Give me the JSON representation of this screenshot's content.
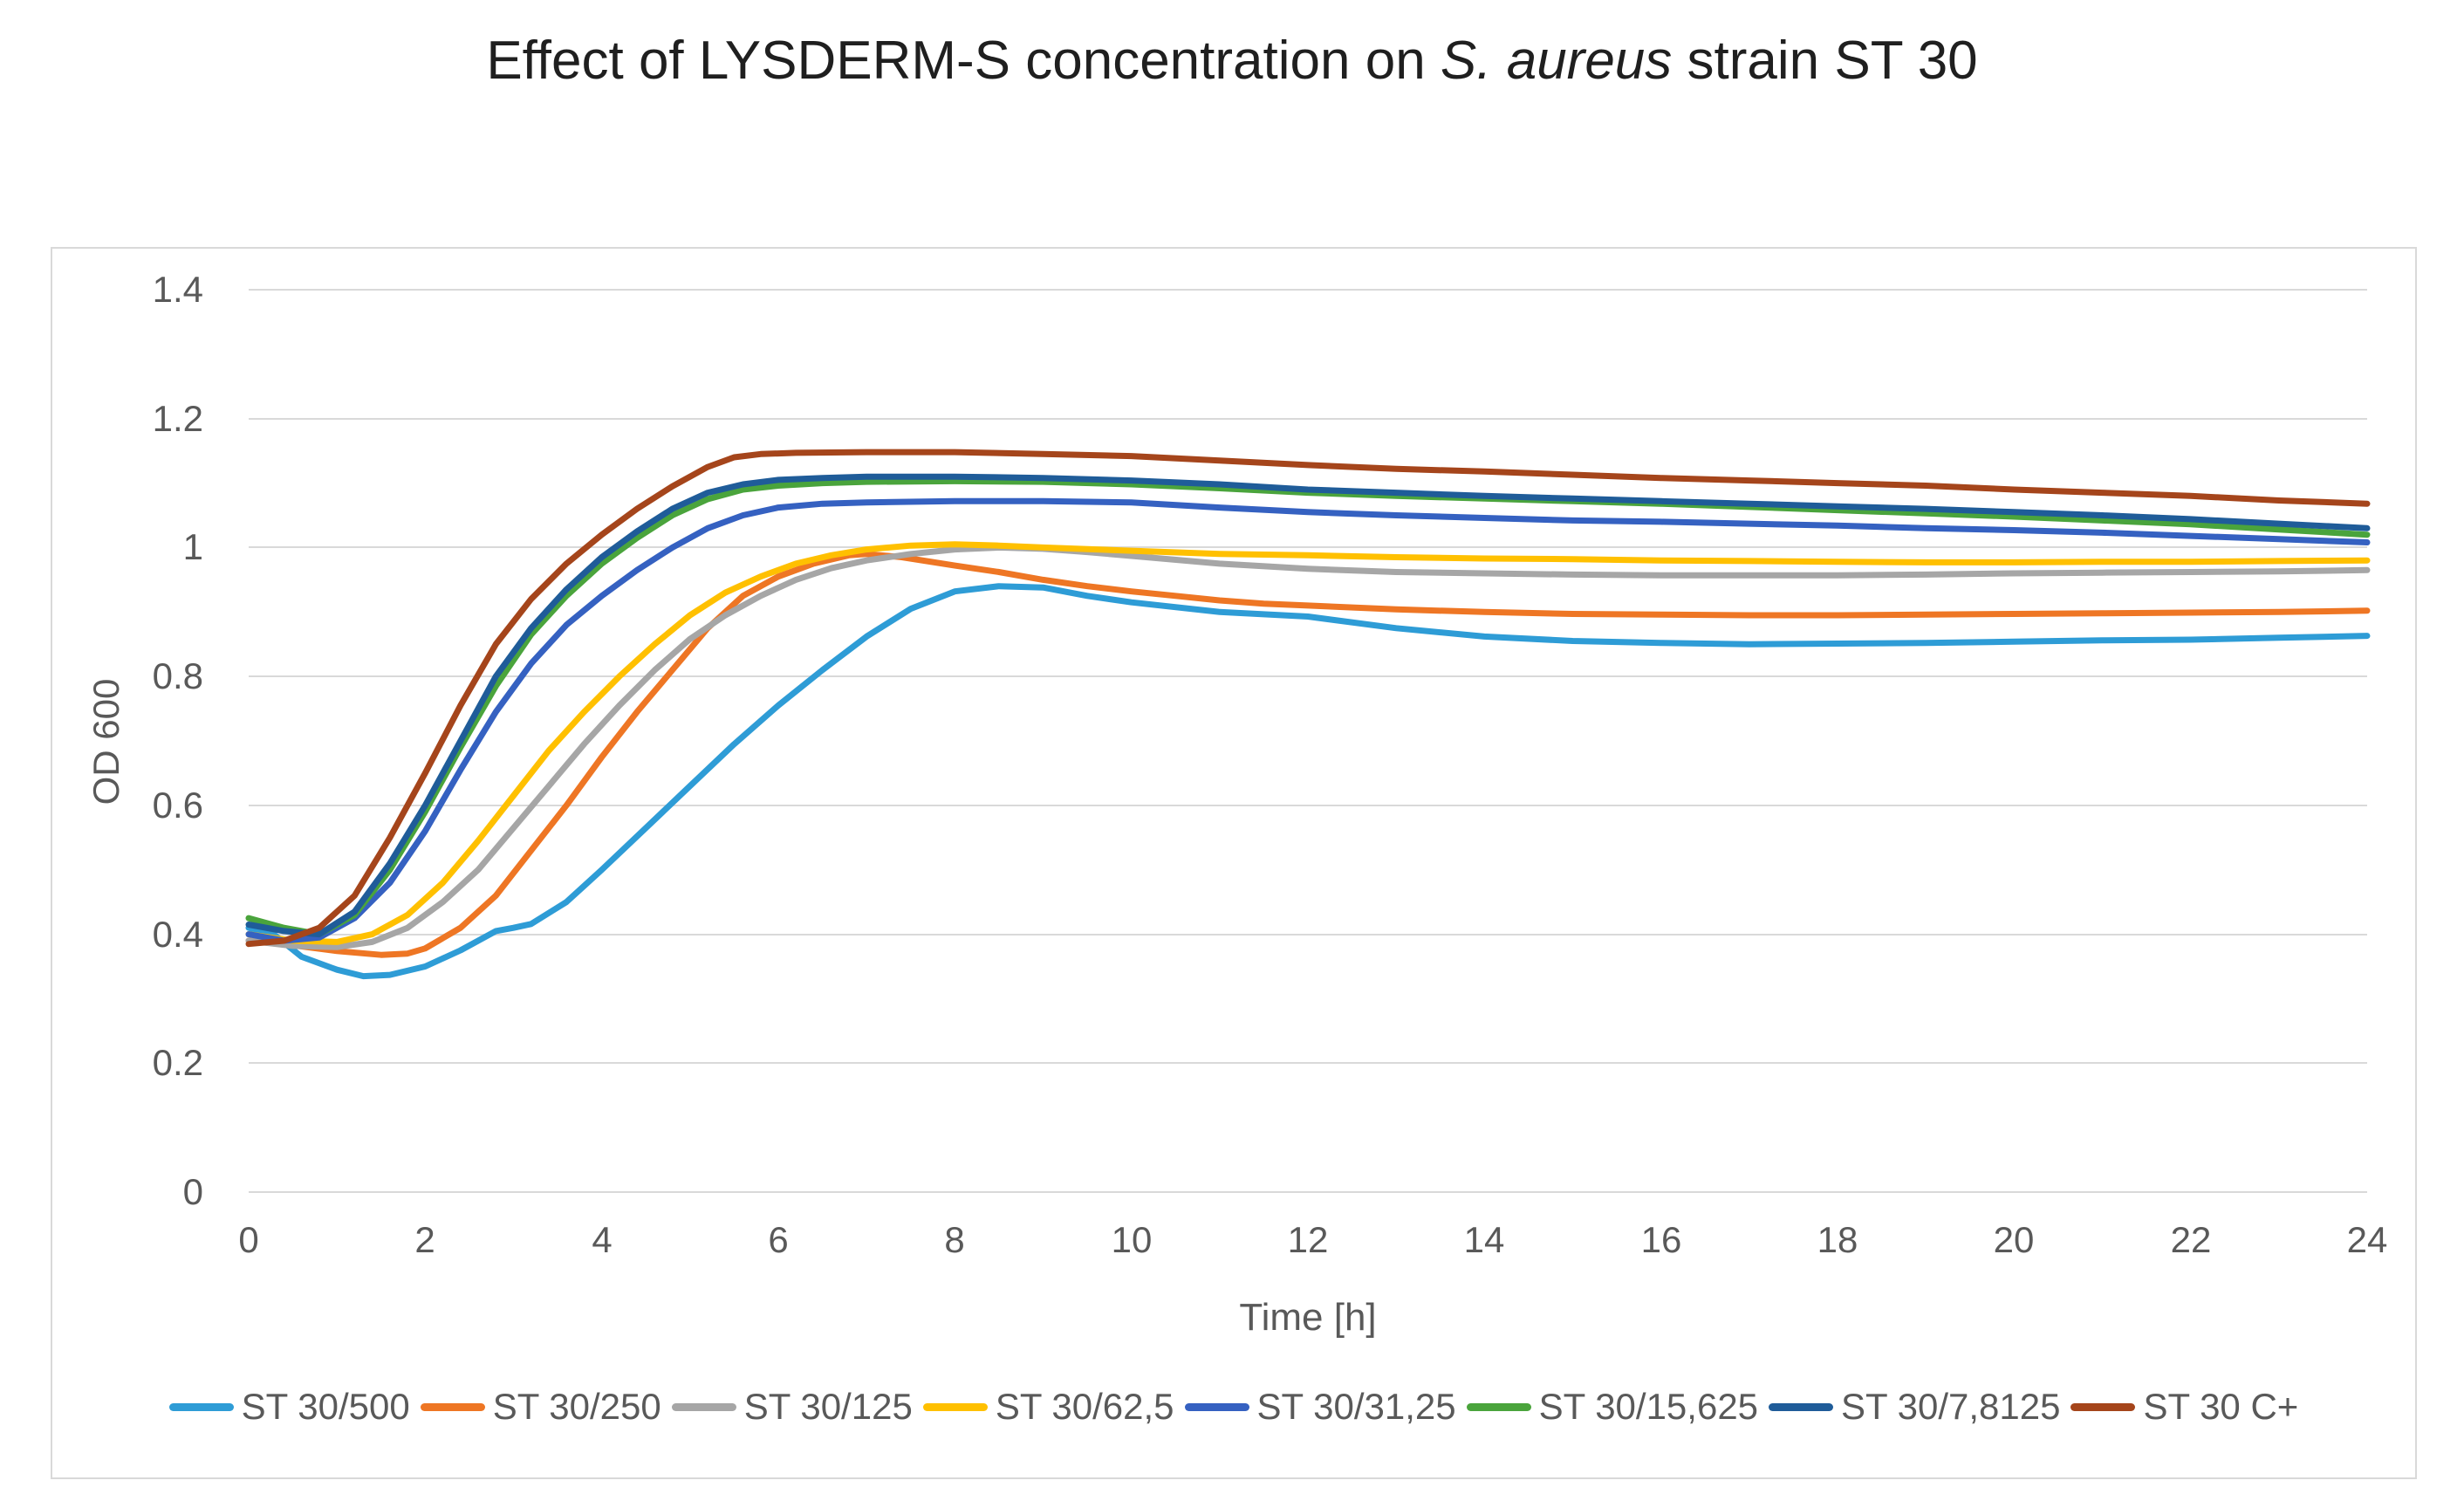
{
  "title": {
    "prefix": "Effect of LYSDERM-S concentration on ",
    "italic": "S. aureus",
    "suffix": " strain ST 30"
  },
  "axes": {
    "y_label": "OD 600",
    "x_label": "Time [h]",
    "y_ticks": [
      "1.4",
      "1.2",
      "1",
      "0.8",
      "0.6",
      "0.4",
      "0.2",
      "0"
    ],
    "x_ticks": [
      "0",
      "2",
      "4",
      "6",
      "8",
      "10",
      "12",
      "14",
      "16",
      "18",
      "20",
      "22",
      "24"
    ]
  },
  "colors": {
    "grid": "#d9d9d9",
    "border": "#d9d9d9",
    "tick_text": "#595959",
    "title_text": "#1f1f1f"
  },
  "chart_data": {
    "type": "line",
    "title": "Effect of LYSDERM-S concentration on S. aureus strain ST 30",
    "xlabel": "Time [h]",
    "ylabel": "OD 600",
    "xlim": [
      0,
      24
    ],
    "ylim": [
      0,
      1.4
    ],
    "grid": true,
    "legend_position": "bottom",
    "series": [
      {
        "name": "ST 30/500",
        "color": "#2e9cd6",
        "points": [
          [
            0,
            0.41
          ],
          [
            0.3,
            0.398
          ],
          [
            0.6,
            0.365
          ],
          [
            1,
            0.345
          ],
          [
            1.3,
            0.335
          ],
          [
            1.6,
            0.337
          ],
          [
            2,
            0.35
          ],
          [
            2.4,
            0.375
          ],
          [
            2.8,
            0.405
          ],
          [
            3,
            0.41
          ],
          [
            3.2,
            0.416
          ],
          [
            3.6,
            0.45
          ],
          [
            4,
            0.5
          ],
          [
            4.5,
            0.565
          ],
          [
            5,
            0.63
          ],
          [
            5.5,
            0.695
          ],
          [
            6,
            0.755
          ],
          [
            6.5,
            0.81
          ],
          [
            7,
            0.862
          ],
          [
            7.5,
            0.905
          ],
          [
            8,
            0.932
          ],
          [
            8.5,
            0.94
          ],
          [
            9,
            0.938
          ],
          [
            9.5,
            0.925
          ],
          [
            10,
            0.915
          ],
          [
            11,
            0.9
          ],
          [
            12,
            0.893
          ],
          [
            13,
            0.875
          ],
          [
            14,
            0.862
          ],
          [
            15,
            0.855
          ],
          [
            16,
            0.852
          ],
          [
            17,
            0.85
          ],
          [
            18,
            0.851
          ],
          [
            19,
            0.852
          ],
          [
            20,
            0.854
          ],
          [
            21,
            0.856
          ],
          [
            22,
            0.857
          ],
          [
            23,
            0.86
          ],
          [
            24,
            0.863
          ]
        ]
      },
      {
        "name": "ST 30/250",
        "color": "#ee7624",
        "points": [
          [
            0,
            0.39
          ],
          [
            0.5,
            0.383
          ],
          [
            1,
            0.374
          ],
          [
            1.5,
            0.368
          ],
          [
            1.8,
            0.37
          ],
          [
            2,
            0.378
          ],
          [
            2.4,
            0.41
          ],
          [
            2.8,
            0.46
          ],
          [
            3.2,
            0.53
          ],
          [
            3.6,
            0.6
          ],
          [
            4,
            0.675
          ],
          [
            4.4,
            0.745
          ],
          [
            4.8,
            0.81
          ],
          [
            5.2,
            0.875
          ],
          [
            5.6,
            0.925
          ],
          [
            6,
            0.955
          ],
          [
            6.4,
            0.975
          ],
          [
            6.8,
            0.988
          ],
          [
            7,
            0.99
          ],
          [
            7.4,
            0.985
          ],
          [
            8,
            0.972
          ],
          [
            8.5,
            0.962
          ],
          [
            9,
            0.95
          ],
          [
            9.5,
            0.94
          ],
          [
            10,
            0.932
          ],
          [
            10.5,
            0.925
          ],
          [
            11,
            0.918
          ],
          [
            11.5,
            0.913
          ],
          [
            12,
            0.91
          ],
          [
            13,
            0.904
          ],
          [
            14,
            0.9
          ],
          [
            15,
            0.897
          ],
          [
            16,
            0.896
          ],
          [
            17,
            0.895
          ],
          [
            18,
            0.895
          ],
          [
            19,
            0.896
          ],
          [
            20,
            0.897
          ],
          [
            21,
            0.898
          ],
          [
            22,
            0.899
          ],
          [
            23,
            0.9
          ],
          [
            24,
            0.902
          ]
        ]
      },
      {
        "name": "ST 30/125",
        "color": "#a6a6a6",
        "points": [
          [
            0,
            0.39
          ],
          [
            0.5,
            0.382
          ],
          [
            1,
            0.38
          ],
          [
            1.4,
            0.388
          ],
          [
            1.8,
            0.41
          ],
          [
            2.2,
            0.45
          ],
          [
            2.6,
            0.5
          ],
          [
            3,
            0.565
          ],
          [
            3.4,
            0.63
          ],
          [
            3.8,
            0.695
          ],
          [
            4.2,
            0.755
          ],
          [
            4.6,
            0.81
          ],
          [
            5,
            0.858
          ],
          [
            5.4,
            0.895
          ],
          [
            5.8,
            0.925
          ],
          [
            6.2,
            0.95
          ],
          [
            6.6,
            0.968
          ],
          [
            7,
            0.98
          ],
          [
            7.5,
            0.99
          ],
          [
            8,
            0.997
          ],
          [
            8.5,
            1.0
          ],
          [
            9,
            0.998
          ],
          [
            9.5,
            0.993
          ],
          [
            10,
            0.987
          ],
          [
            11,
            0.975
          ],
          [
            12,
            0.967
          ],
          [
            13,
            0.962
          ],
          [
            14,
            0.96
          ],
          [
            15,
            0.958
          ],
          [
            16,
            0.957
          ],
          [
            17,
            0.957
          ],
          [
            18,
            0.957
          ],
          [
            19,
            0.958
          ],
          [
            20,
            0.96
          ],
          [
            21,
            0.961
          ],
          [
            22,
            0.962
          ],
          [
            23,
            0.963
          ],
          [
            24,
            0.965
          ]
        ]
      },
      {
        "name": "ST 30/62,5",
        "color": "#ffc000",
        "points": [
          [
            0,
            0.4
          ],
          [
            0.5,
            0.39
          ],
          [
            1,
            0.388
          ],
          [
            1.4,
            0.4
          ],
          [
            1.8,
            0.43
          ],
          [
            2.2,
            0.48
          ],
          [
            2.6,
            0.545
          ],
          [
            3,
            0.615
          ],
          [
            3.4,
            0.685
          ],
          [
            3.8,
            0.745
          ],
          [
            4.2,
            0.8
          ],
          [
            4.6,
            0.85
          ],
          [
            5,
            0.895
          ],
          [
            5.4,
            0.93
          ],
          [
            5.8,
            0.955
          ],
          [
            6.2,
            0.975
          ],
          [
            6.6,
            0.988
          ],
          [
            7,
            0.997
          ],
          [
            7.5,
            1.003
          ],
          [
            8,
            1.005
          ],
          [
            8.5,
            1.003
          ],
          [
            9,
            1.0
          ],
          [
            10,
            0.995
          ],
          [
            11,
            0.99
          ],
          [
            12,
            0.988
          ],
          [
            13,
            0.985
          ],
          [
            14,
            0.983
          ],
          [
            15,
            0.982
          ],
          [
            16,
            0.98
          ],
          [
            17,
            0.979
          ],
          [
            18,
            0.978
          ],
          [
            19,
            0.977
          ],
          [
            20,
            0.977
          ],
          [
            21,
            0.978
          ],
          [
            22,
            0.978
          ],
          [
            23,
            0.979
          ],
          [
            24,
            0.98
          ]
        ]
      },
      {
        "name": "ST 30/31,25",
        "color": "#3561c1",
        "points": [
          [
            0,
            0.4
          ],
          [
            0.4,
            0.39
          ],
          [
            0.8,
            0.395
          ],
          [
            1.2,
            0.425
          ],
          [
            1.6,
            0.48
          ],
          [
            2,
            0.56
          ],
          [
            2.4,
            0.655
          ],
          [
            2.8,
            0.745
          ],
          [
            3.2,
            0.82
          ],
          [
            3.6,
            0.88
          ],
          [
            4,
            0.925
          ],
          [
            4.4,
            0.965
          ],
          [
            4.8,
            1.0
          ],
          [
            5.2,
            1.03
          ],
          [
            5.6,
            1.05
          ],
          [
            6,
            1.062
          ],
          [
            6.5,
            1.068
          ],
          [
            7,
            1.07
          ],
          [
            8,
            1.072
          ],
          [
            9,
            1.072
          ],
          [
            10,
            1.07
          ],
          [
            11,
            1.062
          ],
          [
            12,
            1.055
          ],
          [
            13,
            1.05
          ],
          [
            14,
            1.046
          ],
          [
            15,
            1.042
          ],
          [
            16,
            1.04
          ],
          [
            17,
            1.037
          ],
          [
            18,
            1.034
          ],
          [
            19,
            1.03
          ],
          [
            20,
            1.027
          ],
          [
            21,
            1.023
          ],
          [
            22,
            1.018
          ],
          [
            23,
            1.013
          ],
          [
            24,
            1.008
          ]
        ]
      },
      {
        "name": "ST 30/15,625",
        "color": "#4aa43c",
        "points": [
          [
            0,
            0.425
          ],
          [
            0.4,
            0.41
          ],
          [
            0.8,
            0.4
          ],
          [
            1.2,
            0.43
          ],
          [
            1.6,
            0.5
          ],
          [
            2,
            0.59
          ],
          [
            2.4,
            0.69
          ],
          [
            2.8,
            0.785
          ],
          [
            3.2,
            0.865
          ],
          [
            3.6,
            0.925
          ],
          [
            4,
            0.975
          ],
          [
            4.4,
            1.015
          ],
          [
            4.8,
            1.05
          ],
          [
            5.2,
            1.075
          ],
          [
            5.6,
            1.09
          ],
          [
            6,
            1.096
          ],
          [
            6.5,
            1.1
          ],
          [
            7,
            1.102
          ],
          [
            8,
            1.103
          ],
          [
            9,
            1.102
          ],
          [
            10,
            1.098
          ],
          [
            11,
            1.092
          ],
          [
            12,
            1.085
          ],
          [
            13,
            1.08
          ],
          [
            14,
            1.076
          ],
          [
            15,
            1.072
          ],
          [
            16,
            1.068
          ],
          [
            17,
            1.063
          ],
          [
            18,
            1.058
          ],
          [
            19,
            1.053
          ],
          [
            20,
            1.048
          ],
          [
            21,
            1.042
          ],
          [
            22,
            1.036
          ],
          [
            23,
            1.028
          ],
          [
            24,
            1.02
          ]
        ]
      },
      {
        "name": "ST 30/7,8125",
        "color": "#1f5c99",
        "points": [
          [
            0,
            0.415
          ],
          [
            0.4,
            0.405
          ],
          [
            0.8,
            0.4
          ],
          [
            1.2,
            0.435
          ],
          [
            1.6,
            0.51
          ],
          [
            2,
            0.6
          ],
          [
            2.4,
            0.7
          ],
          [
            2.8,
            0.8
          ],
          [
            3.2,
            0.875
          ],
          [
            3.6,
            0.935
          ],
          [
            4,
            0.985
          ],
          [
            4.4,
            1.025
          ],
          [
            4.8,
            1.06
          ],
          [
            5.2,
            1.085
          ],
          [
            5.6,
            1.098
          ],
          [
            6,
            1.105
          ],
          [
            6.5,
            1.108
          ],
          [
            7,
            1.11
          ],
          [
            8,
            1.11
          ],
          [
            9,
            1.108
          ],
          [
            10,
            1.104
          ],
          [
            11,
            1.098
          ],
          [
            12,
            1.09
          ],
          [
            13,
            1.085
          ],
          [
            14,
            1.08
          ],
          [
            15,
            1.076
          ],
          [
            16,
            1.072
          ],
          [
            17,
            1.068
          ],
          [
            18,
            1.064
          ],
          [
            19,
            1.06
          ],
          [
            20,
            1.055
          ],
          [
            21,
            1.05
          ],
          [
            22,
            1.044
          ],
          [
            23,
            1.037
          ],
          [
            24,
            1.03
          ]
        ]
      },
      {
        "name": "ST 30 C+",
        "color": "#a5451b",
        "points": [
          [
            0,
            0.385
          ],
          [
            0.4,
            0.39
          ],
          [
            0.8,
            0.41
          ],
          [
            1.2,
            0.46
          ],
          [
            1.6,
            0.55
          ],
          [
            2,
            0.65
          ],
          [
            2.4,
            0.755
          ],
          [
            2.8,
            0.85
          ],
          [
            3.2,
            0.92
          ],
          [
            3.6,
            0.975
          ],
          [
            4,
            1.02
          ],
          [
            4.4,
            1.06
          ],
          [
            4.8,
            1.095
          ],
          [
            5.2,
            1.125
          ],
          [
            5.5,
            1.14
          ],
          [
            5.8,
            1.145
          ],
          [
            6.2,
            1.147
          ],
          [
            7,
            1.148
          ],
          [
            8,
            1.148
          ],
          [
            9,
            1.145
          ],
          [
            10,
            1.142
          ],
          [
            11,
            1.135
          ],
          [
            12,
            1.128
          ],
          [
            13,
            1.122
          ],
          [
            14,
            1.118
          ],
          [
            15,
            1.113
          ],
          [
            16,
            1.108
          ],
          [
            17,
            1.104
          ],
          [
            18,
            1.1
          ],
          [
            19,
            1.096
          ],
          [
            20,
            1.09
          ],
          [
            21,
            1.085
          ],
          [
            22,
            1.08
          ],
          [
            23,
            1.073
          ],
          [
            24,
            1.068
          ]
        ]
      }
    ]
  }
}
